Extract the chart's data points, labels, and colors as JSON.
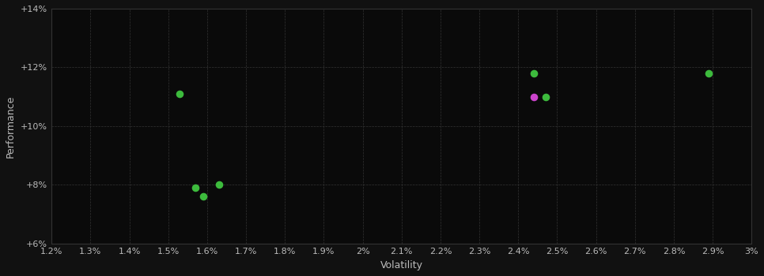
{
  "xlabel": "Volatility",
  "ylabel": "Performance",
  "background_color": "#111111",
  "grid_color": "#333333",
  "plot_bg_color": "#0a0a0a",
  "text_color": "#bbbbbb",
  "xlim": [
    0.012,
    0.03
  ],
  "ylim": [
    0.06,
    0.14
  ],
  "xticks": [
    0.012,
    0.013,
    0.014,
    0.015,
    0.016,
    0.017,
    0.018,
    0.019,
    0.02,
    0.021,
    0.022,
    0.023,
    0.024,
    0.025,
    0.026,
    0.027,
    0.028,
    0.029,
    0.03
  ],
  "yticks": [
    0.06,
    0.08,
    0.1,
    0.12,
    0.14
  ],
  "green_points": [
    [
      0.0153,
      0.111
    ],
    [
      0.0157,
      0.079
    ],
    [
      0.0159,
      0.076
    ],
    [
      0.0163,
      0.08
    ],
    [
      0.0244,
      0.118
    ],
    [
      0.0247,
      0.11
    ],
    [
      0.0289,
      0.118
    ]
  ],
  "magenta_points": [
    [
      0.0244,
      0.11
    ]
  ],
  "green_color": "#3dbb3d",
  "magenta_color": "#cc44cc",
  "point_size": 35
}
